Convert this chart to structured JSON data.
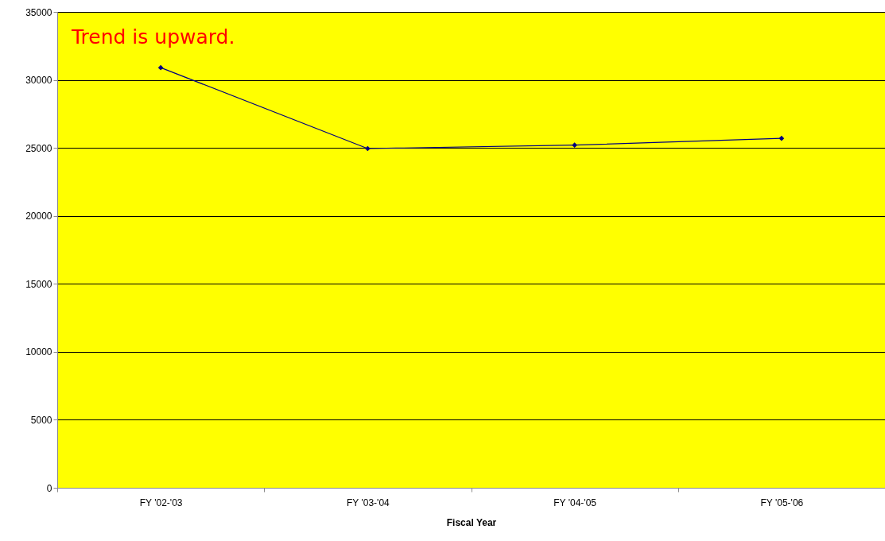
{
  "chart_data": {
    "type": "line",
    "xlabel": "Fiscal Year",
    "annotations": [
      "Trend is upward."
    ],
    "categories": [
      "FY '02-'03",
      "FY '03-'04",
      "FY '04-'05",
      "FY '05-'06"
    ],
    "series": [
      {
        "color": "#000080",
        "values": [
          30900,
          24950,
          25200,
          25700
        ]
      }
    ],
    "ylim": [
      0,
      35000
    ],
    "yticks": [
      0,
      5000,
      10000,
      15000,
      20000,
      25000,
      30000,
      35000
    ],
    "grid": "y",
    "marker": "diamond",
    "line_style": "solid"
  }
}
